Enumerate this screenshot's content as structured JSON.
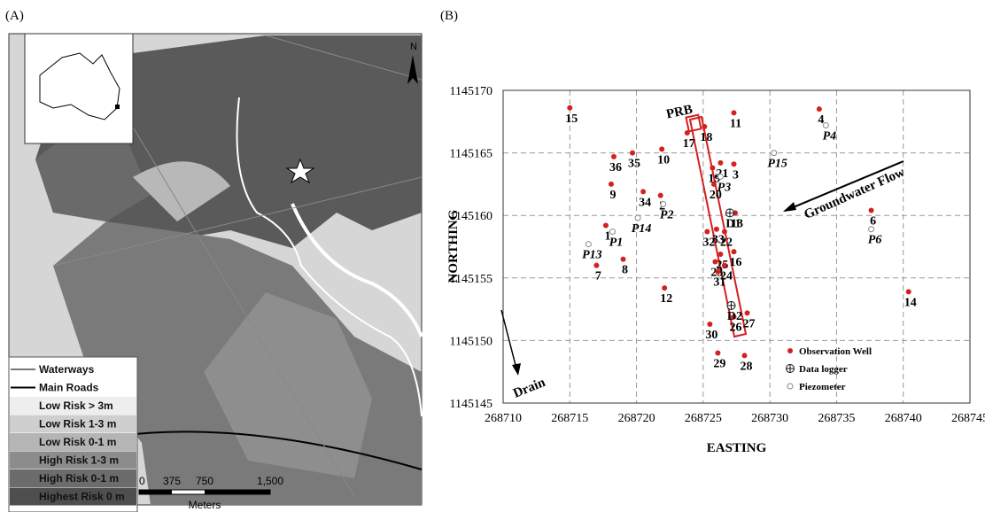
{
  "panel_a": {
    "label": "(A)",
    "north": "N",
    "legend": [
      "Waterways",
      "Main Roads",
      "Low Risk > 3m",
      "Low Risk 1-3 m",
      "Low Risk 0-1 m",
      "High Risk 1-3 m",
      "High Risk 0-1 m",
      "Highest Risk 0 m"
    ],
    "scale": {
      "ticks": [
        "0",
        "375",
        "750",
        "1,500"
      ],
      "unit": "Meters"
    }
  },
  "chart_data": {
    "type": "scatter",
    "panel_label": "(B)",
    "x_label": "EASTING",
    "y_label": "NORTHING",
    "xlim": [
      268710,
      268745
    ],
    "xticks": [
      268710,
      268715,
      268720,
      268725,
      268730,
      268735,
      268740,
      268745
    ],
    "ylim": [
      1145145,
      1145170
    ],
    "yticks": [
      1145145,
      1145150,
      1145155,
      1145160,
      1145165,
      1145170
    ],
    "grid": true,
    "legend_position": "lower right",
    "annotations": [
      "PRB",
      "Groundwater Flow",
      "Drain"
    ],
    "series": [
      {
        "name": "Observation Well",
        "color": "#d42020",
        "marker": "filled",
        "labels": [
          "15",
          "18",
          "17",
          "11",
          "4",
          "10",
          "36",
          "35",
          "3",
          "21",
          "19",
          "9",
          "34",
          "2",
          "20",
          "13",
          "6",
          "1",
          "32",
          "33",
          "22",
          "16",
          "25",
          "8",
          "7",
          "23",
          "24",
          "31",
          "14",
          "12",
          "27",
          "26",
          "30",
          "29",
          "28"
        ],
        "x": [
          268715.0,
          268725.1,
          268723.8,
          268727.3,
          268733.7,
          268721.9,
          268718.3,
          268719.7,
          268727.3,
          268726.3,
          268725.7,
          268718.1,
          268720.5,
          268721.8,
          268725.8,
          268727.4,
          268737.6,
          268717.7,
          268725.3,
          268726.0,
          268726.6,
          268727.3,
          268726.3,
          268719.0,
          268717.0,
          268725.9,
          268726.6,
          268726.1,
          268740.4,
          268722.1,
          268728.3,
          268727.3,
          268725.5,
          268726.1,
          268728.1
        ],
        "y": [
          1145168.6,
          1145167.1,
          1145166.6,
          1145168.2,
          1145168.5,
          1145165.3,
          1145164.7,
          1145165.0,
          1145164.1,
          1145164.2,
          1145163.8,
          1145162.5,
          1145161.9,
          1145161.6,
          1145162.5,
          1145160.2,
          1145160.4,
          1145159.2,
          1145158.7,
          1145158.9,
          1145158.7,
          1145157.1,
          1145156.9,
          1145156.5,
          1145156.0,
          1145156.3,
          1145156.0,
          1145155.5,
          1145153.9,
          1145154.2,
          1145152.2,
          1145151.9,
          1145151.3,
          1145149.0,
          1145148.8
        ]
      },
      {
        "name": "Data logger",
        "color": "#111111",
        "marker": "crossed",
        "labels": [
          "D1",
          "D2"
        ],
        "x": [
          268727.0,
          268727.1
        ],
        "y": [
          1145160.2,
          1145152.8
        ]
      },
      {
        "name": "Piezometer",
        "color": "#888888",
        "marker": "open",
        "labels": [
          "P1",
          "P13",
          "P14",
          "P2",
          "P3",
          "P15",
          "P4",
          "P6"
        ],
        "x": [
          268718.2,
          268716.4,
          268720.1,
          268722.0,
          268726.3,
          268730.3,
          268734.2,
          268737.6
        ],
        "y": [
          1145158.7,
          1145157.7,
          1145159.8,
          1145160.9,
          1145163.1,
          1145165.0,
          1145167.2,
          1145158.9
        ]
      }
    ]
  }
}
